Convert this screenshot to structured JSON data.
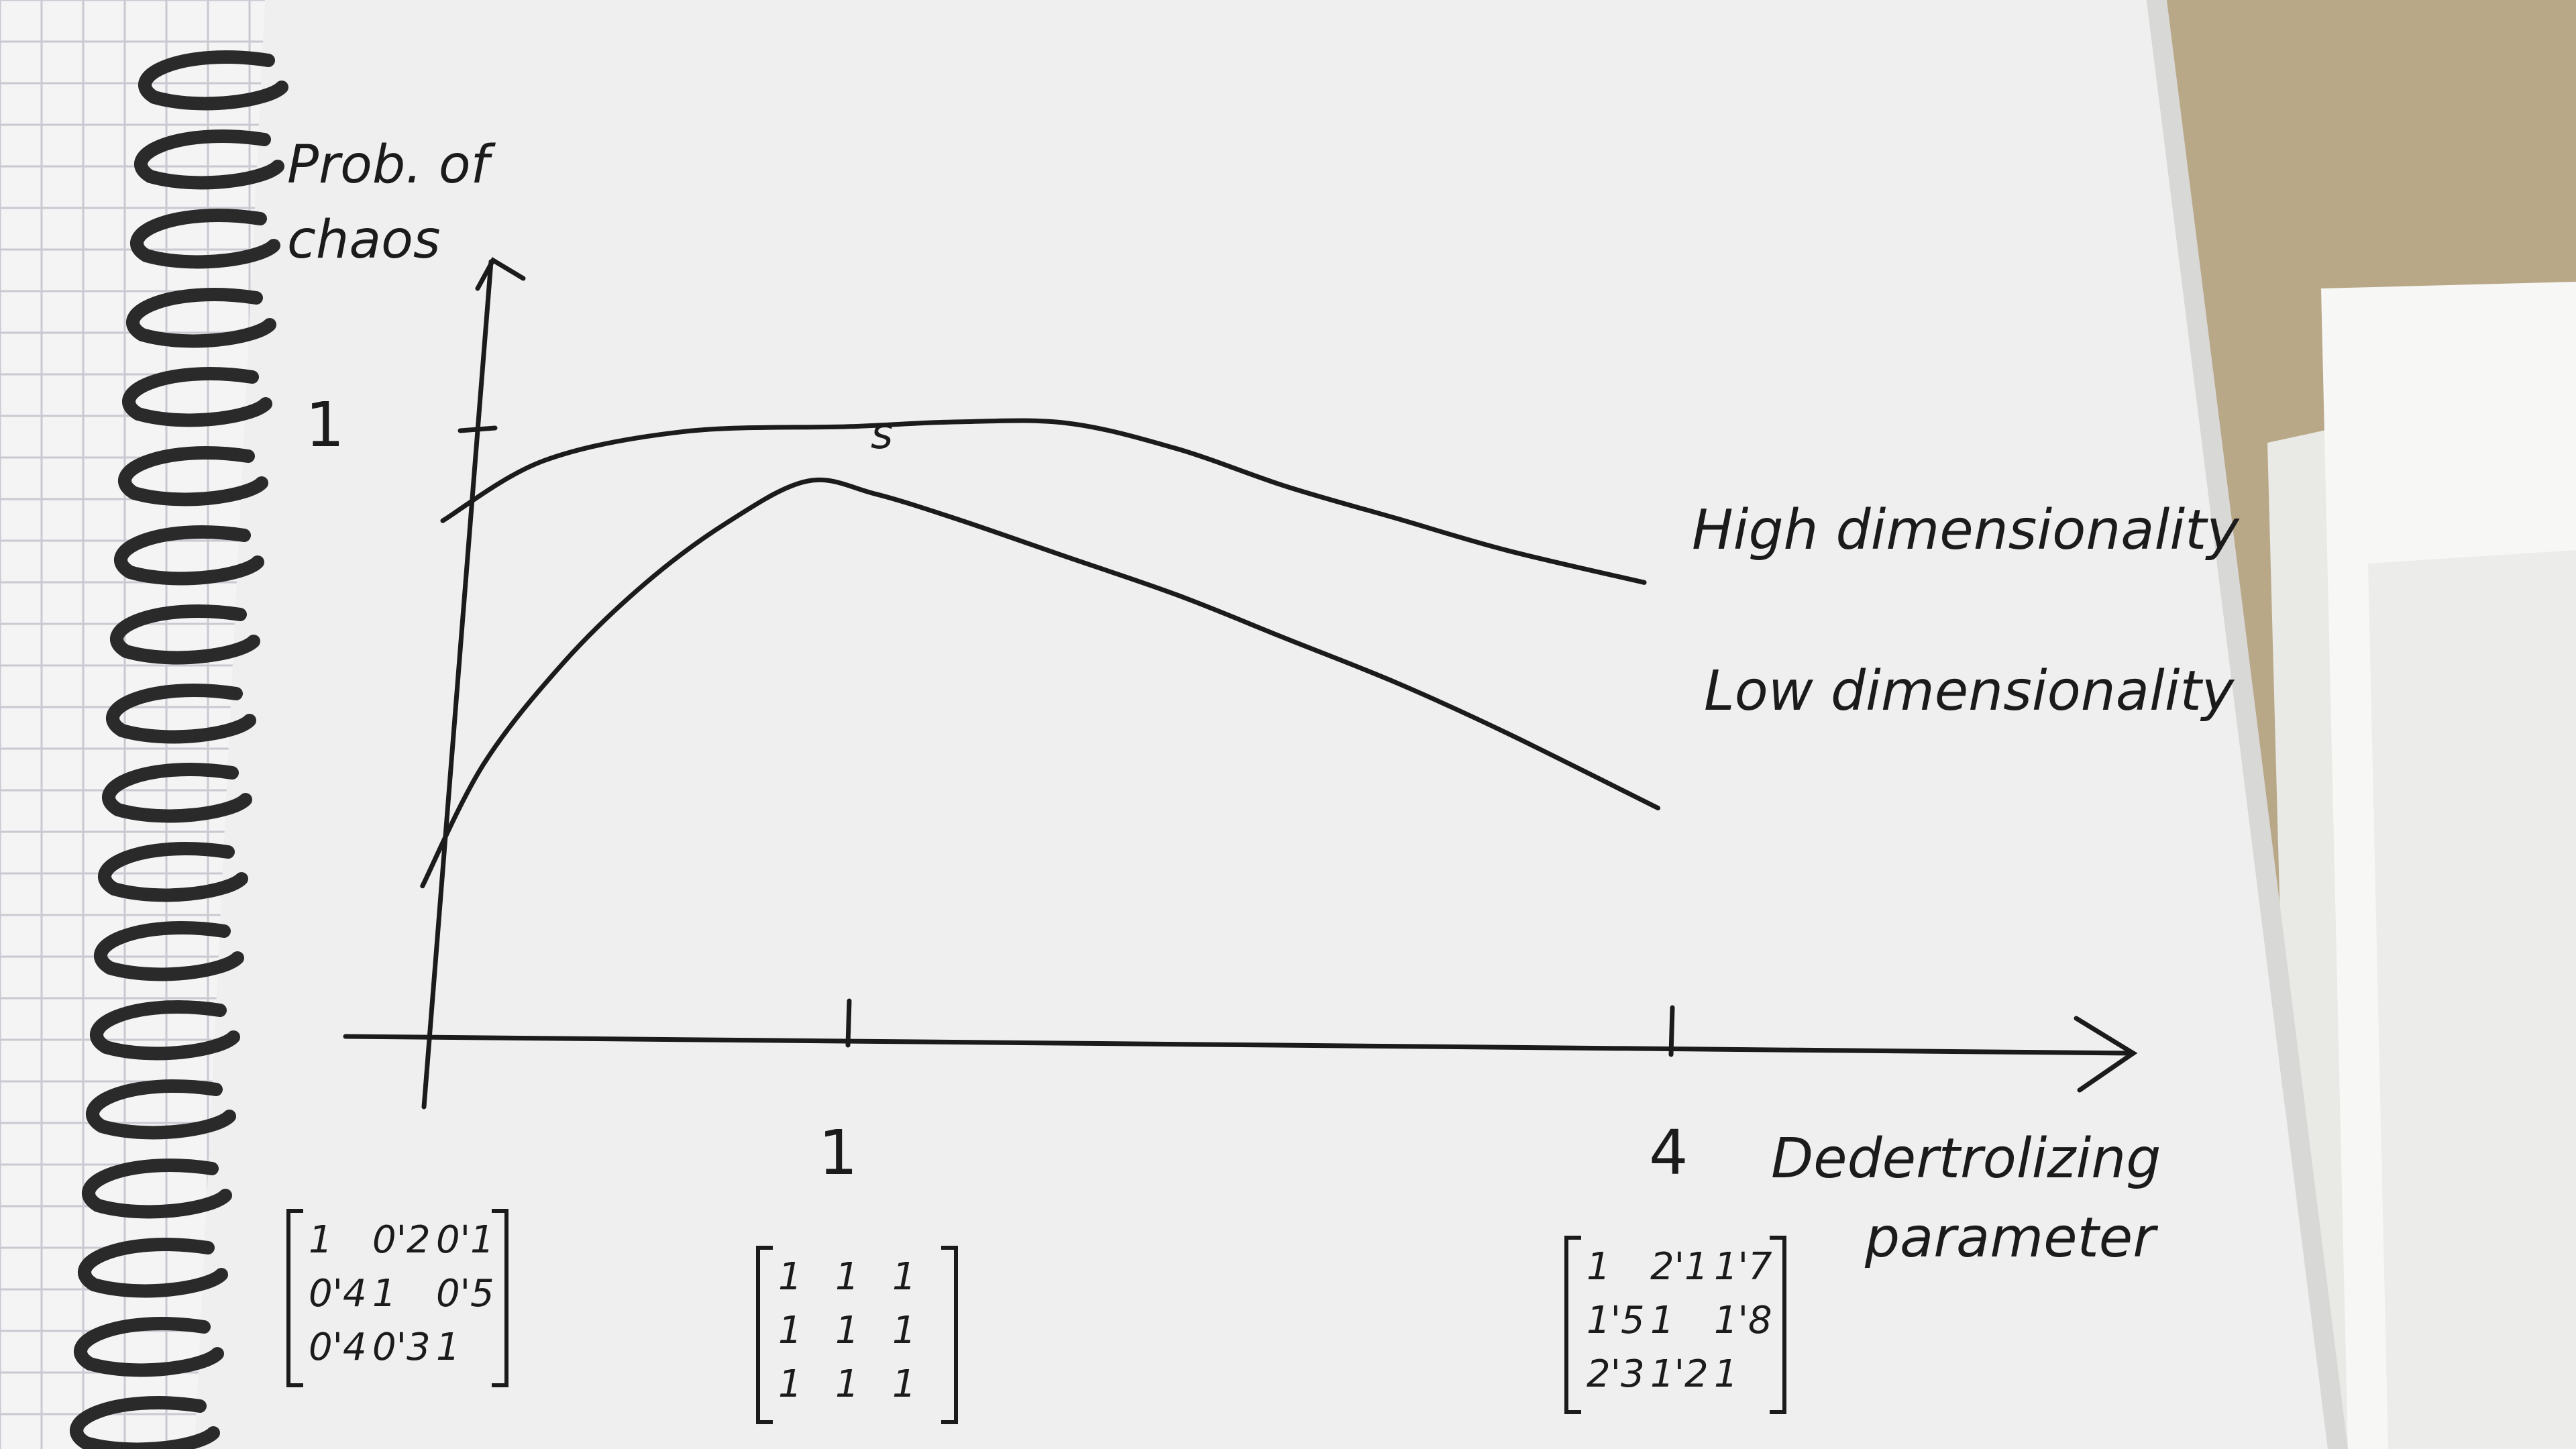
{
  "chart_data": {
    "type": "line",
    "ylabel": "Prob. of chaos",
    "xlabel": "Dedertrolizing parameter",
    "y_ticks": [
      "1"
    ],
    "x_ticks": [
      "1",
      "4"
    ],
    "xlim": [
      0,
      4.5
    ],
    "ylim": [
      0,
      1.35
    ],
    "series": [
      {
        "name": "High dimensionality",
        "x": [
          0.0,
          0.25,
          0.6,
          1.0,
          1.4,
          1.8,
          2.2,
          2.6,
          3.0,
          3.4,
          3.9
        ],
        "y": [
          0.85,
          0.95,
          1.0,
          1.01,
          1.02,
          1.02,
          0.98,
          0.92,
          0.87,
          0.82,
          0.77
        ]
      },
      {
        "name": "Low dimensionality",
        "x": [
          -0.05,
          0.1,
          0.3,
          0.5,
          0.7,
          0.9,
          1.1,
          1.4,
          1.8,
          2.2,
          2.6,
          3.0,
          3.4,
          3.95
        ],
        "y": [
          0.25,
          0.45,
          0.62,
          0.75,
          0.85,
          0.92,
          0.9,
          0.86,
          0.8,
          0.74,
          0.67,
          0.6,
          0.52,
          0.4
        ]
      }
    ],
    "annotations": {
      "peak_mark": "s"
    },
    "matrices": [
      {
        "at_x": "0",
        "rows": [
          [
            "1",
            "0'2",
            "0'1"
          ],
          [
            "0'4",
            "1",
            "0'5"
          ],
          [
            "0'4",
            "0'3",
            "1"
          ]
        ]
      },
      {
        "at_x": "1",
        "rows": [
          [
            "1",
            "1",
            "1"
          ],
          [
            "1",
            "1",
            "1"
          ],
          [
            "1",
            "1",
            "1"
          ]
        ]
      },
      {
        "at_x": "4",
        "rows": [
          [
            "1",
            "2'1",
            "1'7"
          ],
          [
            "1'5",
            "1",
            "1'8"
          ],
          [
            "2'3",
            "1'2",
            "1"
          ]
        ]
      }
    ]
  },
  "colors": {
    "paper": "#efefef",
    "ink": "#1b1b1b",
    "table": "#b8a887",
    "grid_paper": "#f4f4f4",
    "grid_line": "#c9c9d2",
    "spiral": "#2a2a2a"
  }
}
